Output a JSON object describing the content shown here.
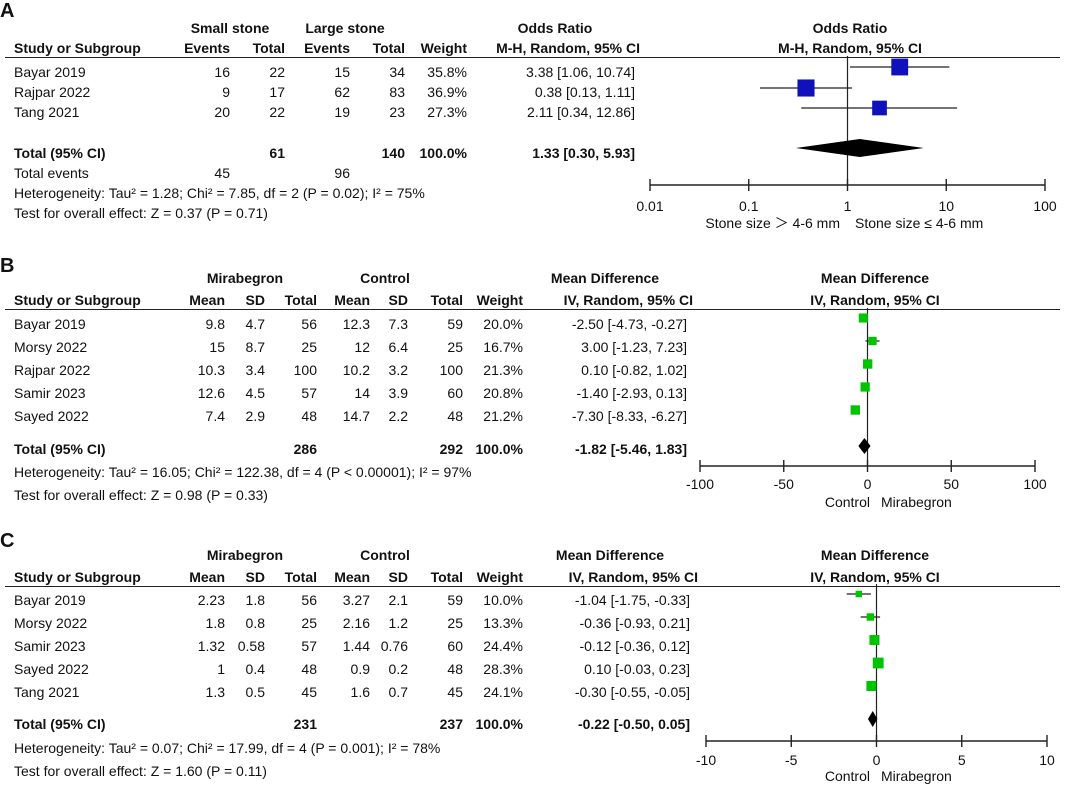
{
  "panels": [
    {
      "id": "A",
      "label": "A",
      "layout": "or",
      "group_headers": [
        "Small stone",
        "Large stone",
        "Odds Ratio",
        "Odds Ratio"
      ],
      "col_headers": [
        "Study or Subgroup",
        "Events",
        "Total",
        "Events",
        "Total",
        "Weight",
        "M-H, Random, 95% CI",
        "M-H, Random, 95% CI"
      ],
      "rows": [
        {
          "study": "Bayar 2019",
          "cells": [
            "16",
            "22",
            "15",
            "34"
          ],
          "weight": "35.8%",
          "ci_text": "3.38 [1.06, 10.74]"
        },
        {
          "study": "Rajpar 2022",
          "cells": [
            "9",
            "17",
            "62",
            "83"
          ],
          "weight": "36.9%",
          "ci_text": "0.38 [0.13, 1.11]"
        },
        {
          "study": "Tang 2021",
          "cells": [
            "20",
            "22",
            "19",
            "23"
          ],
          "weight": "27.3%",
          "ci_text": "2.11 [0.34, 12.86]"
        }
      ],
      "total": {
        "label": "Total (95% CI)",
        "cells": [
          "",
          "61",
          "",
          "140"
        ],
        "weight": "100.0%",
        "ci_text": "1.33 [0.30, 5.93]"
      },
      "total_events": {
        "label": "Total events",
        "cells": [
          "45",
          "",
          "96",
          ""
        ]
      },
      "heterogeneity": "Heterogeneity: Tau² = 1.28; Chi² = 7.85, df = 2 (P = 0.02); I² = 75%",
      "overall_effect": "Test for overall effect: Z = 0.37 (P = 0.71)",
      "axis_left_label": "Stone size ＞ 4-6 mm",
      "axis_right_label": "Stone size ≤ 4-6 mm"
    },
    {
      "id": "B",
      "label": "B",
      "layout": "md",
      "group_headers": [
        "Mirabegron",
        "Control",
        "Mean Difference",
        "Mean Difference"
      ],
      "col_headers": [
        "Study or Subgroup",
        "Mean",
        "SD",
        "Total",
        "Mean",
        "SD",
        "Total",
        "Weight",
        "IV, Random, 95% CI",
        "IV, Random, 95% CI"
      ],
      "rows": [
        {
          "study": "Bayar 2019",
          "cells": [
            "9.8",
            "4.7",
            "56",
            "12.3",
            "7.3",
            "59"
          ],
          "weight": "20.0%",
          "ci_text": "-2.50 [-4.73, -0.27]"
        },
        {
          "study": "Morsy 2022",
          "cells": [
            "15",
            "8.7",
            "25",
            "12",
            "6.4",
            "25"
          ],
          "weight": "16.7%",
          "ci_text": "3.00 [-1.23, 7.23]"
        },
        {
          "study": "Rajpar 2022",
          "cells": [
            "10.3",
            "3.4",
            "100",
            "10.2",
            "3.2",
            "100"
          ],
          "weight": "21.3%",
          "ci_text": "0.10 [-0.82, 1.02]"
        },
        {
          "study": "Samir 2023",
          "cells": [
            "12.6",
            "4.5",
            "57",
            "14",
            "3.9",
            "60"
          ],
          "weight": "20.8%",
          "ci_text": "-1.40 [-2.93, 0.13]"
        },
        {
          "study": "Sayed 2022",
          "cells": [
            "7.4",
            "2.9",
            "48",
            "14.7",
            "2.2",
            "48"
          ],
          "weight": "21.2%",
          "ci_text": "-7.30 [-8.33, -6.27]"
        }
      ],
      "total": {
        "label": "Total (95% CI)",
        "cells": [
          "",
          "",
          "286",
          "",
          "",
          "292"
        ],
        "weight": "100.0%",
        "ci_text": "-1.82 [-5.46, 1.83]"
      },
      "heterogeneity": "Heterogeneity: Tau² = 16.05; Chi² = 122.38, df = 4 (P < 0.00001); I² = 97%",
      "overall_effect": "Test for overall effect: Z = 0.98 (P = 0.33)",
      "axis_left_label": "Control",
      "axis_right_label": "Mirabegron"
    },
    {
      "id": "C",
      "label": "C",
      "layout": "md",
      "group_headers": [
        "Mirabegron",
        "Control",
        "Mean Difference",
        "Mean Difference"
      ],
      "col_headers": [
        "Study or Subgroup",
        "Mean",
        "SD",
        "Total",
        "Mean",
        "SD",
        "Total",
        "Weight",
        "IV, Random, 95% CI",
        "IV, Random, 95% CI"
      ],
      "rows": [
        {
          "study": "Bayar 2019",
          "cells": [
            "2.23",
            "1.8",
            "56",
            "3.27",
            "2.1",
            "59"
          ],
          "weight": "10.0%",
          "ci_text": "-1.04 [-1.75, -0.33]"
        },
        {
          "study": "Morsy 2022",
          "cells": [
            "1.8",
            "0.8",
            "25",
            "2.16",
            "1.2",
            "25"
          ],
          "weight": "13.3%",
          "ci_text": "-0.36 [-0.93, 0.21]"
        },
        {
          "study": "Samir 2023",
          "cells": [
            "1.32",
            "0.58",
            "57",
            "1.44",
            "0.76",
            "60"
          ],
          "weight": "24.4%",
          "ci_text": "-0.12 [-0.36, 0.12]"
        },
        {
          "study": "Sayed 2022",
          "cells": [
            "1",
            "0.4",
            "48",
            "0.9",
            "0.2",
            "48"
          ],
          "weight": "28.3%",
          "ci_text": "0.10 [-0.03, 0.23]"
        },
        {
          "study": "Tang 2021",
          "cells": [
            "1.3",
            "0.5",
            "45",
            "1.6",
            "0.7",
            "45"
          ],
          "weight": "24.1%",
          "ci_text": "-0.30 [-0.55, -0.05]"
        }
      ],
      "total": {
        "label": "Total (95% CI)",
        "cells": [
          "",
          "",
          "231",
          "",
          "",
          "237"
        ],
        "weight": "100.0%",
        "ci_text": "-0.22 [-0.50, 0.05]"
      },
      "heterogeneity": "Heterogeneity: Tau² = 0.07; Chi² = 17.99, df = 4 (P = 0.001); I² = 78%",
      "overall_effect": "Test for overall effect: Z = 1.60 (P = 0.11)",
      "axis_left_label": "Control",
      "axis_right_label": "Mirabegron"
    }
  ],
  "colors": {
    "panelA_marker": "#1111bb",
    "panelBC_marker": "#00c400",
    "diamond": "#000000",
    "line": "#222222"
  },
  "chart_data": [
    {
      "type": "forest",
      "title": "A",
      "measure": "Odds Ratio (M-H, Random, 95% CI)",
      "scale": "log",
      "ticks": [
        0.01,
        0.1,
        1,
        10,
        100
      ],
      "tick_labels": [
        "0.01",
        "0.1",
        "1",
        "10",
        "100"
      ],
      "xlim": [
        0.01,
        100
      ],
      "reference": 1,
      "studies": [
        {
          "name": "Bayar 2019",
          "estimate": 3.38,
          "lower": 1.06,
          "upper": 10.74,
          "weight": 35.8
        },
        {
          "name": "Rajpar 2022",
          "estimate": 0.38,
          "lower": 0.13,
          "upper": 1.11,
          "weight": 36.9
        },
        {
          "name": "Tang 2021",
          "estimate": 2.11,
          "lower": 0.34,
          "upper": 12.86,
          "weight": 27.3
        }
      ],
      "pooled": {
        "estimate": 1.33,
        "lower": 0.3,
        "upper": 5.93
      }
    },
    {
      "type": "forest",
      "title": "B",
      "measure": "Mean Difference (IV, Random, 95% CI)",
      "scale": "linear",
      "ticks": [
        -100,
        -50,
        0,
        50,
        100
      ],
      "tick_labels": [
        "-100",
        "-50",
        "0",
        "50",
        "100"
      ],
      "xlim": [
        -100,
        100
      ],
      "reference": 0,
      "studies": [
        {
          "name": "Bayar 2019",
          "estimate": -2.5,
          "lower": -4.73,
          "upper": -0.27,
          "weight": 20.0
        },
        {
          "name": "Morsy 2022",
          "estimate": 3.0,
          "lower": -1.23,
          "upper": 7.23,
          "weight": 16.7
        },
        {
          "name": "Rajpar 2022",
          "estimate": 0.1,
          "lower": -0.82,
          "upper": 1.02,
          "weight": 21.3
        },
        {
          "name": "Samir 2023",
          "estimate": -1.4,
          "lower": -2.93,
          "upper": 0.13,
          "weight": 20.8
        },
        {
          "name": "Sayed 2022",
          "estimate": -7.3,
          "lower": -8.33,
          "upper": -6.27,
          "weight": 21.2
        }
      ],
      "pooled": {
        "estimate": -1.82,
        "lower": -5.46,
        "upper": 1.83
      }
    },
    {
      "type": "forest",
      "title": "C",
      "measure": "Mean Difference (IV, Random, 95% CI)",
      "scale": "linear",
      "ticks": [
        -10,
        -5,
        0,
        5,
        10
      ],
      "tick_labels": [
        "-10",
        "-5",
        "0",
        "5",
        "10"
      ],
      "xlim": [
        -10,
        10
      ],
      "reference": 0,
      "studies": [
        {
          "name": "Bayar 2019",
          "estimate": -1.04,
          "lower": -1.75,
          "upper": -0.33,
          "weight": 10.0
        },
        {
          "name": "Morsy 2022",
          "estimate": -0.36,
          "lower": -0.93,
          "upper": 0.21,
          "weight": 13.3
        },
        {
          "name": "Samir 2023",
          "estimate": -0.12,
          "lower": -0.36,
          "upper": 0.12,
          "weight": 24.4
        },
        {
          "name": "Sayed 2022",
          "estimate": 0.1,
          "lower": -0.03,
          "upper": 0.23,
          "weight": 28.3
        },
        {
          "name": "Tang 2021",
          "estimate": -0.3,
          "lower": -0.55,
          "upper": -0.05,
          "weight": 24.1
        }
      ],
      "pooled": {
        "estimate": -0.22,
        "lower": -0.5,
        "upper": 0.05
      }
    }
  ]
}
